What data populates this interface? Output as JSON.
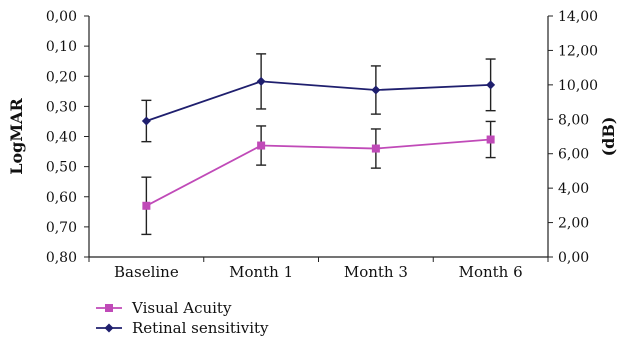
{
  "chart_data": {
    "type": "line",
    "categories": [
      "Baseline",
      "Month 1",
      "Month 3",
      "Month 6"
    ],
    "left_axis": {
      "label": "LogMAR",
      "range": [
        0.8,
        0.0
      ],
      "inverted": true,
      "ticks": [
        "0,00",
        "0,10",
        "0,20",
        "0,30",
        "0,40",
        "0,50",
        "0,60",
        "0,70",
        "0,80"
      ]
    },
    "right_axis": {
      "label": "(dB)",
      "range": [
        0,
        14
      ],
      "ticks": [
        "0,00",
        "2,00",
        "4,00",
        "6,00",
        "8,00",
        "10,00",
        "12,00",
        "14,00"
      ]
    },
    "series": [
      {
        "name": "Visual Acuity",
        "axis": "left",
        "color": "#c04ab8",
        "marker": "square",
        "values": [
          0.63,
          0.43,
          0.44,
          0.41
        ],
        "error": [
          0.095,
          0.065,
          0.065,
          0.06
        ]
      },
      {
        "name": "Retinal sensitivity",
        "axis": "right",
        "color": "#1f1f6e",
        "marker": "diamond",
        "values": [
          7.9,
          10.2,
          9.7,
          10.0
        ],
        "error": [
          1.2,
          1.6,
          1.4,
          1.5
        ]
      }
    ],
    "grid": false,
    "legend_position": "bottom-left"
  }
}
